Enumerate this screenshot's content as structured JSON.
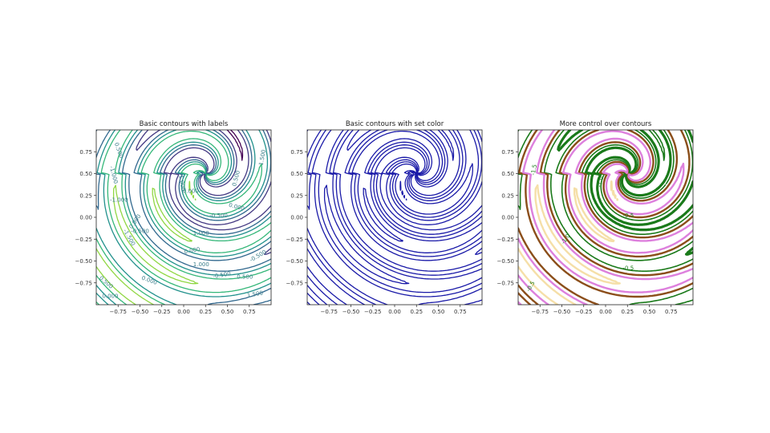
{
  "chart_data": [
    {
      "type": "contour",
      "title": "Basic contours with labels",
      "xlim": [
        -1.0,
        1.0
      ],
      "ylim": [
        -1.0,
        1.0
      ],
      "x_ticks": [
        "−0.75",
        "−0.50",
        "−0.25",
        "0.00",
        "0.25",
        "0.50",
        "0.75"
      ],
      "y_ticks": [
        "0.75",
        "0.50",
        "0.25",
        "0.00",
        "−0.25",
        "−0.50",
        "−0.75"
      ],
      "levels": [
        -1.5,
        -1.0,
        -0.5,
        0.0,
        0.5,
        1.0,
        1.5
      ],
      "colormap": "viridis",
      "contour_labels": [
        "0.500",
        "-1.000",
        "-1.000",
        "0.000",
        "-0.500",
        "0.000",
        "0.500",
        "0.000",
        "-0.500",
        "1.000",
        "1.500",
        "-1.500",
        "0.000",
        "1.000",
        "-0.500",
        "0.500",
        "0.500",
        "0.000",
        "-0.500",
        "0.000",
        "1.500",
        "-1.000"
      ],
      "grid": false
    },
    {
      "type": "contour",
      "title": "Basic contours with set color",
      "xlim": [
        -1.0,
        1.0
      ],
      "ylim": [
        -1.0,
        1.0
      ],
      "x_ticks": [
        "−0.75",
        "−0.50",
        "−0.25",
        "0.00",
        "0.25",
        "0.50",
        "0.75"
      ],
      "y_ticks": [
        "0.75",
        "0.50",
        "0.25",
        "0.00",
        "−0.25",
        "−0.50",
        "−0.75"
      ],
      "levels": [
        -1.5,
        -1.0,
        -0.5,
        0.0,
        0.5,
        1.0,
        1.5
      ],
      "line_color": "#1a1aa8",
      "negative_style": "dashed",
      "grid": false
    },
    {
      "type": "contour",
      "title": "More control over contours",
      "xlim": [
        -1.0,
        1.0
      ],
      "ylim": [
        -1.0,
        1.0
      ],
      "x_ticks": [
        "−0.75",
        "−0.50",
        "−0.25",
        "0.00",
        "0.25",
        "0.50",
        "0.75"
      ],
      "y_ticks": [
        "0.75",
        "0.50",
        "0.25",
        "0.00",
        "−0.25",
        "−0.50",
        "−0.75"
      ],
      "levels": [
        -1.5,
        -1.0,
        -0.5,
        0.0,
        0.5,
        1.0,
        1.5
      ],
      "negative_color": "#1a7a1a",
      "negative_style": "dotted",
      "positive_colors": [
        "#dd80dd",
        "#f5dfa8",
        "#e89a2c",
        "#8b4e1a"
      ],
      "contour_labels": [
        "-1.5",
        "-1.0",
        "-0.5",
        "-1.0",
        "-0.5",
        "-0.5"
      ],
      "grid": false
    }
  ]
}
